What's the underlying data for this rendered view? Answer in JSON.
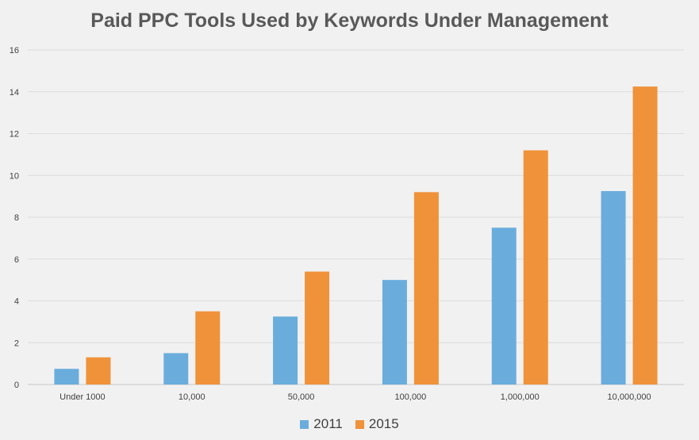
{
  "chart_data": {
    "type": "bar",
    "title": "Paid PPC Tools Used by Keywords Under Management",
    "xlabel": "",
    "ylabel": "",
    "categories": [
      "Under 1000",
      "10,000",
      "50,000",
      "100,000",
      "1,000,000",
      "10,000,000"
    ],
    "series": [
      {
        "name": "2011",
        "color": "#6aaddd",
        "values": [
          0.75,
          1.5,
          3.25,
          5.0,
          7.5,
          9.25
        ]
      },
      {
        "name": "2015",
        "color": "#f0923a",
        "values": [
          1.3,
          3.5,
          5.4,
          9.2,
          11.2,
          14.25
        ]
      }
    ],
    "ylim": [
      0,
      16
    ],
    "yticks": [
      "0",
      "2",
      "4",
      "6",
      "8",
      "10",
      "12",
      "14",
      "16"
    ],
    "grid": true,
    "legend_position": "bottom"
  }
}
